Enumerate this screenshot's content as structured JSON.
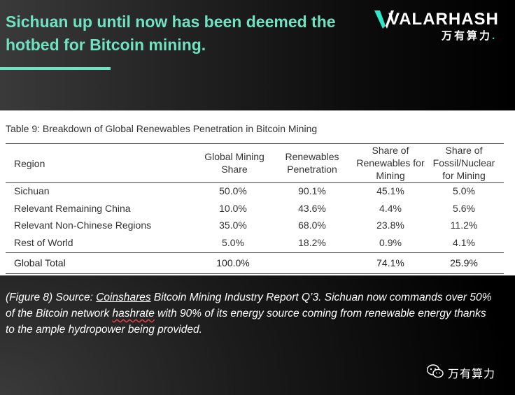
{
  "headline": {
    "text": "Sichuan up until now has been deemed the hotbed for Bitcoin mining."
  },
  "brand": {
    "partial_the": "the",
    "logo_word": "VALARHASH",
    "logo_cn": "万有算力",
    "accent_color": "#6fe3c0"
  },
  "table": {
    "caption": "Table 9: Breakdown of Global Renewables Penetration in Bitcoin Mining",
    "columns": [
      "Region",
      "Global Mining Share",
      "Renewables Penetration",
      "Share of Renewables for Mining",
      "Share of Fossil/Nuclear for Mining"
    ],
    "rows": [
      [
        "Sichuan",
        "50.0%",
        "90.1%",
        "45.1%",
        "5.0%"
      ],
      [
        "Relevant Remaining China",
        "10.0%",
        "43.6%",
        "4.4%",
        "5.6%"
      ],
      [
        "Relevant Non-Chinese Regions",
        "35.0%",
        "68.0%",
        "23.8%",
        "11.2%"
      ],
      [
        "Rest of World",
        "5.0%",
        "18.2%",
        "0.9%",
        "4.1%"
      ]
    ],
    "total": [
      "Global Total",
      "100.0%",
      "",
      "74.1%",
      "25.9%"
    ]
  },
  "source": {
    "part1": "(Figure 8) Source: ",
    "link": "Coinshares",
    "part2": " Bitcoin Mining Industry Report Q’3. Sichuan now commands over 50% of the Bitcoin network ",
    "squiggle": "hashrate",
    "part3": " with 90% of its energy source coming from renewable energy thanks to the ample hydropower being provided."
  },
  "wechat": {
    "label": "万有算力",
    "icon": "wechat-icon"
  }
}
